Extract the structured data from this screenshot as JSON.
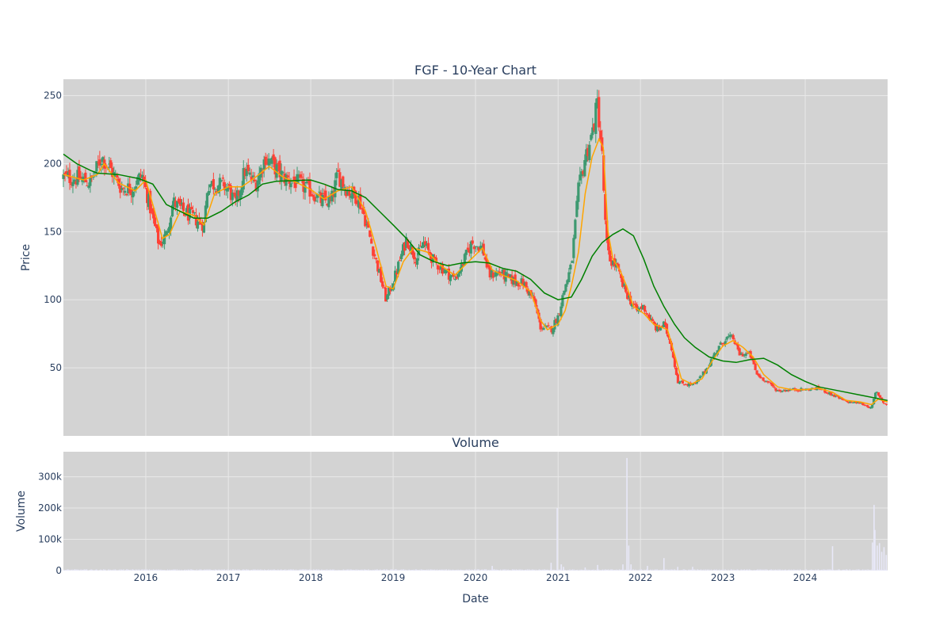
{
  "chart_data": {
    "type": "candlestick",
    "title": "FGF - 10-Year Chart",
    "colors": {
      "plot_bg": "#d3d3d3",
      "grid": "#e8e8e8",
      "increasing": "#3d9970",
      "decreasing": "#ff4136",
      "ma_short": "#ffa500",
      "ma_long": "#008000",
      "volume": "#e8e8f8"
    },
    "price_panel": {
      "ylabel": "Price",
      "ylim": [
        0,
        262
      ],
      "yticks": [
        50,
        100,
        150,
        200,
        250
      ],
      "grid": true
    },
    "volume_panel": {
      "title": "Volume",
      "ylabel": "Volume",
      "ylim": [
        0,
        380000
      ],
      "yticks": [
        0,
        100000,
        200000,
        300000
      ],
      "ytick_labels": [
        "0",
        "100k",
        "200k",
        "300k"
      ],
      "grid": true
    },
    "x_axis": {
      "xlabel": "Date",
      "range": [
        "2015-01-01",
        "2024-12-31"
      ],
      "ticks": [
        "2016-01-01",
        "2017-01-01",
        "2018-01-01",
        "2019-01-01",
        "2020-01-01",
        "2021-01-01",
        "2022-01-01",
        "2023-01-01",
        "2024-01-01"
      ],
      "tick_labels": [
        "2016",
        "2017",
        "2018",
        "2019",
        "2020",
        "2021",
        "2022",
        "2023",
        "2024"
      ]
    },
    "close_path": [
      [
        "2015-01-01",
        190
      ],
      [
        "2015-03-15",
        189
      ],
      [
        "2015-05-01",
        186
      ],
      [
        "2015-06-20",
        205
      ],
      [
        "2015-08-01",
        195
      ],
      [
        "2015-09-15",
        182
      ],
      [
        "2015-11-01",
        182
      ],
      [
        "2015-12-15",
        192
      ],
      [
        "2016-02-01",
        160
      ],
      [
        "2016-03-01",
        140
      ],
      [
        "2016-04-01",
        148
      ],
      [
        "2016-05-01",
        172
      ],
      [
        "2016-06-15",
        165
      ],
      [
        "2016-08-01",
        160
      ],
      [
        "2016-09-15",
        155
      ],
      [
        "2016-10-01",
        185
      ],
      [
        "2016-11-15",
        185
      ],
      [
        "2017-01-01",
        182
      ],
      [
        "2017-02-01",
        170
      ],
      [
        "2017-03-15",
        195
      ],
      [
        "2017-05-01",
        185
      ],
      [
        "2017-06-15",
        205
      ],
      [
        "2017-08-01",
        196
      ],
      [
        "2017-09-01",
        190
      ],
      [
        "2017-11-01",
        186
      ],
      [
        "2018-01-01",
        180
      ],
      [
        "2018-02-15",
        173
      ],
      [
        "2018-04-01",
        172
      ],
      [
        "2018-05-01",
        192
      ],
      [
        "2018-06-15",
        180
      ],
      [
        "2018-08-01",
        175
      ],
      [
        "2018-09-01",
        158
      ],
      [
        "2018-10-15",
        130
      ],
      [
        "2018-12-01",
        100
      ],
      [
        "2019-01-15",
        120
      ],
      [
        "2019-03-01",
        145
      ],
      [
        "2019-04-15",
        130
      ],
      [
        "2019-05-15",
        142
      ],
      [
        "2019-07-01",
        128
      ],
      [
        "2019-08-15",
        122
      ],
      [
        "2019-10-01",
        115
      ],
      [
        "2019-11-01",
        125
      ],
      [
        "2019-12-15",
        142
      ],
      [
        "2020-02-01",
        138
      ],
      [
        "2020-03-01",
        118
      ],
      [
        "2020-04-15",
        120
      ],
      [
        "2020-06-01",
        115
      ],
      [
        "2020-08-01",
        112
      ],
      [
        "2020-09-15",
        100
      ],
      [
        "2020-10-15",
        80
      ],
      [
        "2020-12-01",
        78
      ],
      [
        "2021-01-01",
        88
      ],
      [
        "2021-02-01",
        110
      ],
      [
        "2021-03-01",
        125
      ],
      [
        "2021-04-01",
        180
      ],
      [
        "2021-05-01",
        205
      ],
      [
        "2021-06-01",
        222
      ],
      [
        "2021-06-25",
        245
      ],
      [
        "2021-07-15",
        205
      ],
      [
        "2021-08-01",
        145
      ],
      [
        "2021-08-15",
        130
      ],
      [
        "2021-09-15",
        125
      ],
      [
        "2021-10-15",
        110
      ],
      [
        "2021-11-15",
        100
      ],
      [
        "2021-12-15",
        92
      ],
      [
        "2022-01-15",
        95
      ],
      [
        "2022-02-15",
        85
      ],
      [
        "2022-03-15",
        78
      ],
      [
        "2022-04-15",
        82
      ],
      [
        "2022-05-15",
        68
      ],
      [
        "2022-06-15",
        40
      ],
      [
        "2022-07-15",
        38
      ],
      [
        "2022-09-01",
        38
      ],
      [
        "2022-10-15",
        48
      ],
      [
        "2022-12-01",
        62
      ],
      [
        "2023-01-15",
        72
      ],
      [
        "2023-02-15",
        72
      ],
      [
        "2023-03-15",
        60
      ],
      [
        "2023-05-01",
        60
      ],
      [
        "2023-06-01",
        45
      ],
      [
        "2023-07-15",
        40
      ],
      [
        "2023-09-01",
        33
      ],
      [
        "2023-11-01",
        34
      ],
      [
        "2024-01-01",
        34
      ],
      [
        "2024-03-01",
        35
      ],
      [
        "2024-05-01",
        30
      ],
      [
        "2024-07-01",
        25
      ],
      [
        "2024-09-01",
        24
      ],
      [
        "2024-10-01",
        22
      ],
      [
        "2024-10-20",
        20
      ],
      [
        "2024-11-10",
        33
      ],
      [
        "2024-12-10",
        25
      ],
      [
        "2024-12-31",
        22
      ]
    ],
    "ma_short_path": [
      [
        "2015-01-01",
        192
      ],
      [
        "2015-04-01",
        188
      ],
      [
        "2015-06-01",
        192
      ],
      [
        "2015-07-01",
        200
      ],
      [
        "2015-09-01",
        186
      ],
      [
        "2015-11-15",
        180
      ],
      [
        "2016-01-01",
        188
      ],
      [
        "2016-02-15",
        162
      ],
      [
        "2016-03-15",
        145
      ],
      [
        "2016-04-15",
        148
      ],
      [
        "2016-06-01",
        165
      ],
      [
        "2016-08-01",
        162
      ],
      [
        "2016-09-15",
        155
      ],
      [
        "2016-11-01",
        178
      ],
      [
        "2017-01-01",
        183
      ],
      [
        "2017-03-01",
        183
      ],
      [
        "2017-05-01",
        190
      ],
      [
        "2017-07-01",
        198
      ],
      [
        "2017-09-01",
        190
      ],
      [
        "2017-11-01",
        186
      ],
      [
        "2018-01-01",
        181
      ],
      [
        "2018-03-01",
        174
      ],
      [
        "2018-05-01",
        180
      ],
      [
        "2018-07-01",
        183
      ],
      [
        "2018-09-01",
        165
      ],
      [
        "2018-10-15",
        140
      ],
      [
        "2018-12-01",
        110
      ],
      [
        "2019-01-01",
        108
      ],
      [
        "2019-02-15",
        128
      ],
      [
        "2019-04-01",
        138
      ],
      [
        "2019-06-01",
        135
      ],
      [
        "2019-08-01",
        125
      ],
      [
        "2019-10-01",
        118
      ],
      [
        "2019-12-01",
        128
      ],
      [
        "2020-02-01",
        138
      ],
      [
        "2020-03-15",
        122
      ],
      [
        "2020-05-01",
        118
      ],
      [
        "2020-07-01",
        114
      ],
      [
        "2020-09-01",
        106
      ],
      [
        "2020-10-15",
        85
      ],
      [
        "2020-11-15",
        78
      ],
      [
        "2021-01-01",
        82
      ],
      [
        "2021-02-01",
        92
      ],
      [
        "2021-03-01",
        110
      ],
      [
        "2021-04-01",
        135
      ],
      [
        "2021-05-01",
        178
      ],
      [
        "2021-06-01",
        205
      ],
      [
        "2021-07-01",
        218
      ],
      [
        "2021-07-20",
        212
      ],
      [
        "2021-08-10",
        150
      ],
      [
        "2021-09-01",
        130
      ],
      [
        "2021-10-01",
        122
      ],
      [
        "2021-11-01",
        110
      ],
      [
        "2021-12-01",
        95
      ],
      [
        "2022-01-15",
        90
      ],
      [
        "2022-03-01",
        82
      ],
      [
        "2022-04-01",
        80
      ],
      [
        "2022-05-01",
        78
      ],
      [
        "2022-06-01",
        60
      ],
      [
        "2022-07-01",
        42
      ],
      [
        "2022-08-15",
        38
      ],
      [
        "2022-10-01",
        42
      ],
      [
        "2022-11-15",
        55
      ],
      [
        "2023-01-01",
        66
      ],
      [
        "2023-02-15",
        70
      ],
      [
        "2023-04-01",
        65
      ],
      [
        "2023-05-15",
        58
      ],
      [
        "2023-07-01",
        45
      ],
      [
        "2023-09-01",
        36
      ],
      [
        "2023-11-01",
        34
      ],
      [
        "2024-01-01",
        34
      ],
      [
        "2024-03-01",
        35
      ],
      [
        "2024-05-01",
        32
      ],
      [
        "2024-07-01",
        26
      ],
      [
        "2024-09-01",
        25
      ],
      [
        "2024-10-20",
        23
      ],
      [
        "2024-11-20",
        27
      ],
      [
        "2024-12-31",
        25
      ]
    ],
    "ma_long_path": [
      [
        "2015-01-01",
        207
      ],
      [
        "2015-03-01",
        200
      ],
      [
        "2015-05-01",
        195
      ],
      [
        "2015-06-01",
        193
      ],
      [
        "2015-09-01",
        192
      ],
      [
        "2015-12-01",
        189
      ],
      [
        "2016-02-01",
        185
      ],
      [
        "2016-04-01",
        170
      ],
      [
        "2016-06-01",
        165
      ],
      [
        "2016-08-01",
        160
      ],
      [
        "2016-10-01",
        160
      ],
      [
        "2016-12-01",
        165
      ],
      [
        "2017-02-01",
        172
      ],
      [
        "2017-04-01",
        177
      ],
      [
        "2017-06-01",
        185
      ],
      [
        "2017-08-01",
        187
      ],
      [
        "2018-01-01",
        188
      ],
      [
        "2018-03-01",
        185
      ],
      [
        "2018-05-01",
        181
      ],
      [
        "2018-07-01",
        180
      ],
      [
        "2018-09-01",
        175
      ],
      [
        "2018-11-01",
        165
      ],
      [
        "2019-01-01",
        155
      ],
      [
        "2019-03-01",
        145
      ],
      [
        "2019-05-01",
        133
      ],
      [
        "2019-07-01",
        128
      ],
      [
        "2019-09-01",
        125
      ],
      [
        "2019-11-01",
        127
      ],
      [
        "2020-01-01",
        128
      ],
      [
        "2020-03-01",
        127
      ],
      [
        "2020-05-01",
        123
      ],
      [
        "2020-07-01",
        121
      ],
      [
        "2020-09-01",
        115
      ],
      [
        "2020-11-01",
        105
      ],
      [
        "2021-01-01",
        100
      ],
      [
        "2021-03-01",
        102
      ],
      [
        "2021-04-15",
        115
      ],
      [
        "2021-06-01",
        132
      ],
      [
        "2021-07-15",
        142
      ],
      [
        "2021-09-01",
        148
      ],
      [
        "2021-10-15",
        152
      ],
      [
        "2021-12-01",
        147
      ],
      [
        "2022-01-15",
        130
      ],
      [
        "2022-03-01",
        110
      ],
      [
        "2022-04-15",
        95
      ],
      [
        "2022-06-01",
        82
      ],
      [
        "2022-07-15",
        72
      ],
      [
        "2022-09-01",
        65
      ],
      [
        "2022-11-01",
        58
      ],
      [
        "2023-01-01",
        55
      ],
      [
        "2023-03-01",
        54
      ],
      [
        "2023-05-01",
        56
      ],
      [
        "2023-07-01",
        57
      ],
      [
        "2023-09-01",
        52
      ],
      [
        "2023-11-01",
        45
      ],
      [
        "2024-01-01",
        40
      ],
      [
        "2024-03-01",
        36
      ],
      [
        "2024-06-01",
        33
      ],
      [
        "2024-09-01",
        30
      ],
      [
        "2024-12-31",
        26
      ]
    ],
    "volume_spikes": [
      [
        "2020-03-15",
        15000
      ],
      [
        "2020-12-01",
        25000
      ],
      [
        "2020-12-28",
        200000
      ],
      [
        "2021-01-15",
        20000
      ],
      [
        "2021-01-25",
        12000
      ],
      [
        "2021-05-01",
        10000
      ],
      [
        "2021-06-25",
        18000
      ],
      [
        "2021-10-15",
        20000
      ],
      [
        "2021-11-02",
        360000
      ],
      [
        "2021-11-10",
        80000
      ],
      [
        "2021-11-20",
        20000
      ],
      [
        "2022-02-01",
        15000
      ],
      [
        "2022-04-15",
        40000
      ],
      [
        "2022-06-15",
        12000
      ],
      [
        "2022-08-20",
        12000
      ],
      [
        "2024-05-01",
        78000
      ],
      [
        "2024-10-25",
        90000
      ],
      [
        "2024-11-01",
        210000
      ],
      [
        "2024-11-05",
        130000
      ],
      [
        "2024-11-15",
        80000
      ],
      [
        "2024-11-25",
        88000
      ],
      [
        "2024-12-05",
        60000
      ],
      [
        "2024-12-15",
        75000
      ],
      [
        "2024-12-25",
        50000
      ]
    ]
  }
}
